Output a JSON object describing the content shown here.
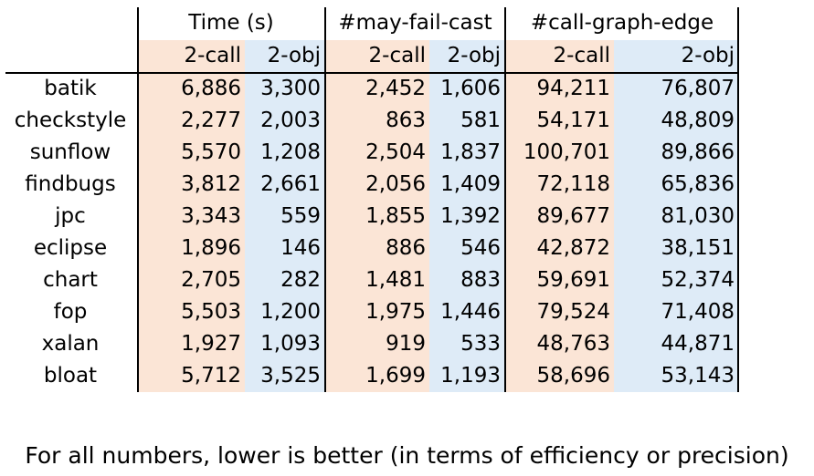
{
  "table": {
    "groups": [
      "Time (s)",
      "#may-fail-cast",
      "#call-graph-edge"
    ],
    "subheaders": [
      "2-call",
      "2-obj",
      "2-call",
      "2-obj",
      "2-call",
      "2-obj"
    ],
    "rows": [
      {
        "name": "batik",
        "values": [
          "6,886",
          "3,300",
          "2,452",
          "1,606",
          "94,211",
          "76,807"
        ]
      },
      {
        "name": "checkstyle",
        "values": [
          "2,277",
          "2,003",
          "863",
          "581",
          "54,171",
          "48,809"
        ]
      },
      {
        "name": "sunflow",
        "values": [
          "5,570",
          "1,208",
          "2,504",
          "1,837",
          "100,701",
          "89,866"
        ]
      },
      {
        "name": "findbugs",
        "values": [
          "3,812",
          "2,661",
          "2,056",
          "1,409",
          "72,118",
          "65,836"
        ]
      },
      {
        "name": "jpc",
        "values": [
          "3,343",
          "559",
          "1,855",
          "1,392",
          "89,677",
          "81,030"
        ]
      },
      {
        "name": "eclipse",
        "values": [
          "1,896",
          "146",
          "886",
          "546",
          "42,872",
          "38,151"
        ]
      },
      {
        "name": "chart",
        "values": [
          "2,705",
          "282",
          "1,481",
          "883",
          "59,691",
          "52,374"
        ]
      },
      {
        "name": "fop",
        "values": [
          "5,503",
          "1,200",
          "1,975",
          "1,446",
          "79,524",
          "71,408"
        ]
      },
      {
        "name": "xalan",
        "values": [
          "1,927",
          "1,093",
          "919",
          "533",
          "48,763",
          "44,871"
        ]
      },
      {
        "name": "bloat",
        "values": [
          "5,712",
          "3,525",
          "1,699",
          "1,193",
          "58,696",
          "53,143"
        ]
      }
    ]
  },
  "colors": {
    "call_column_bg": "#fbe5d6",
    "obj_column_bg": "#deebf7"
  },
  "footnote": "For all numbers, lower is better (in terms of efficiency or precision)"
}
